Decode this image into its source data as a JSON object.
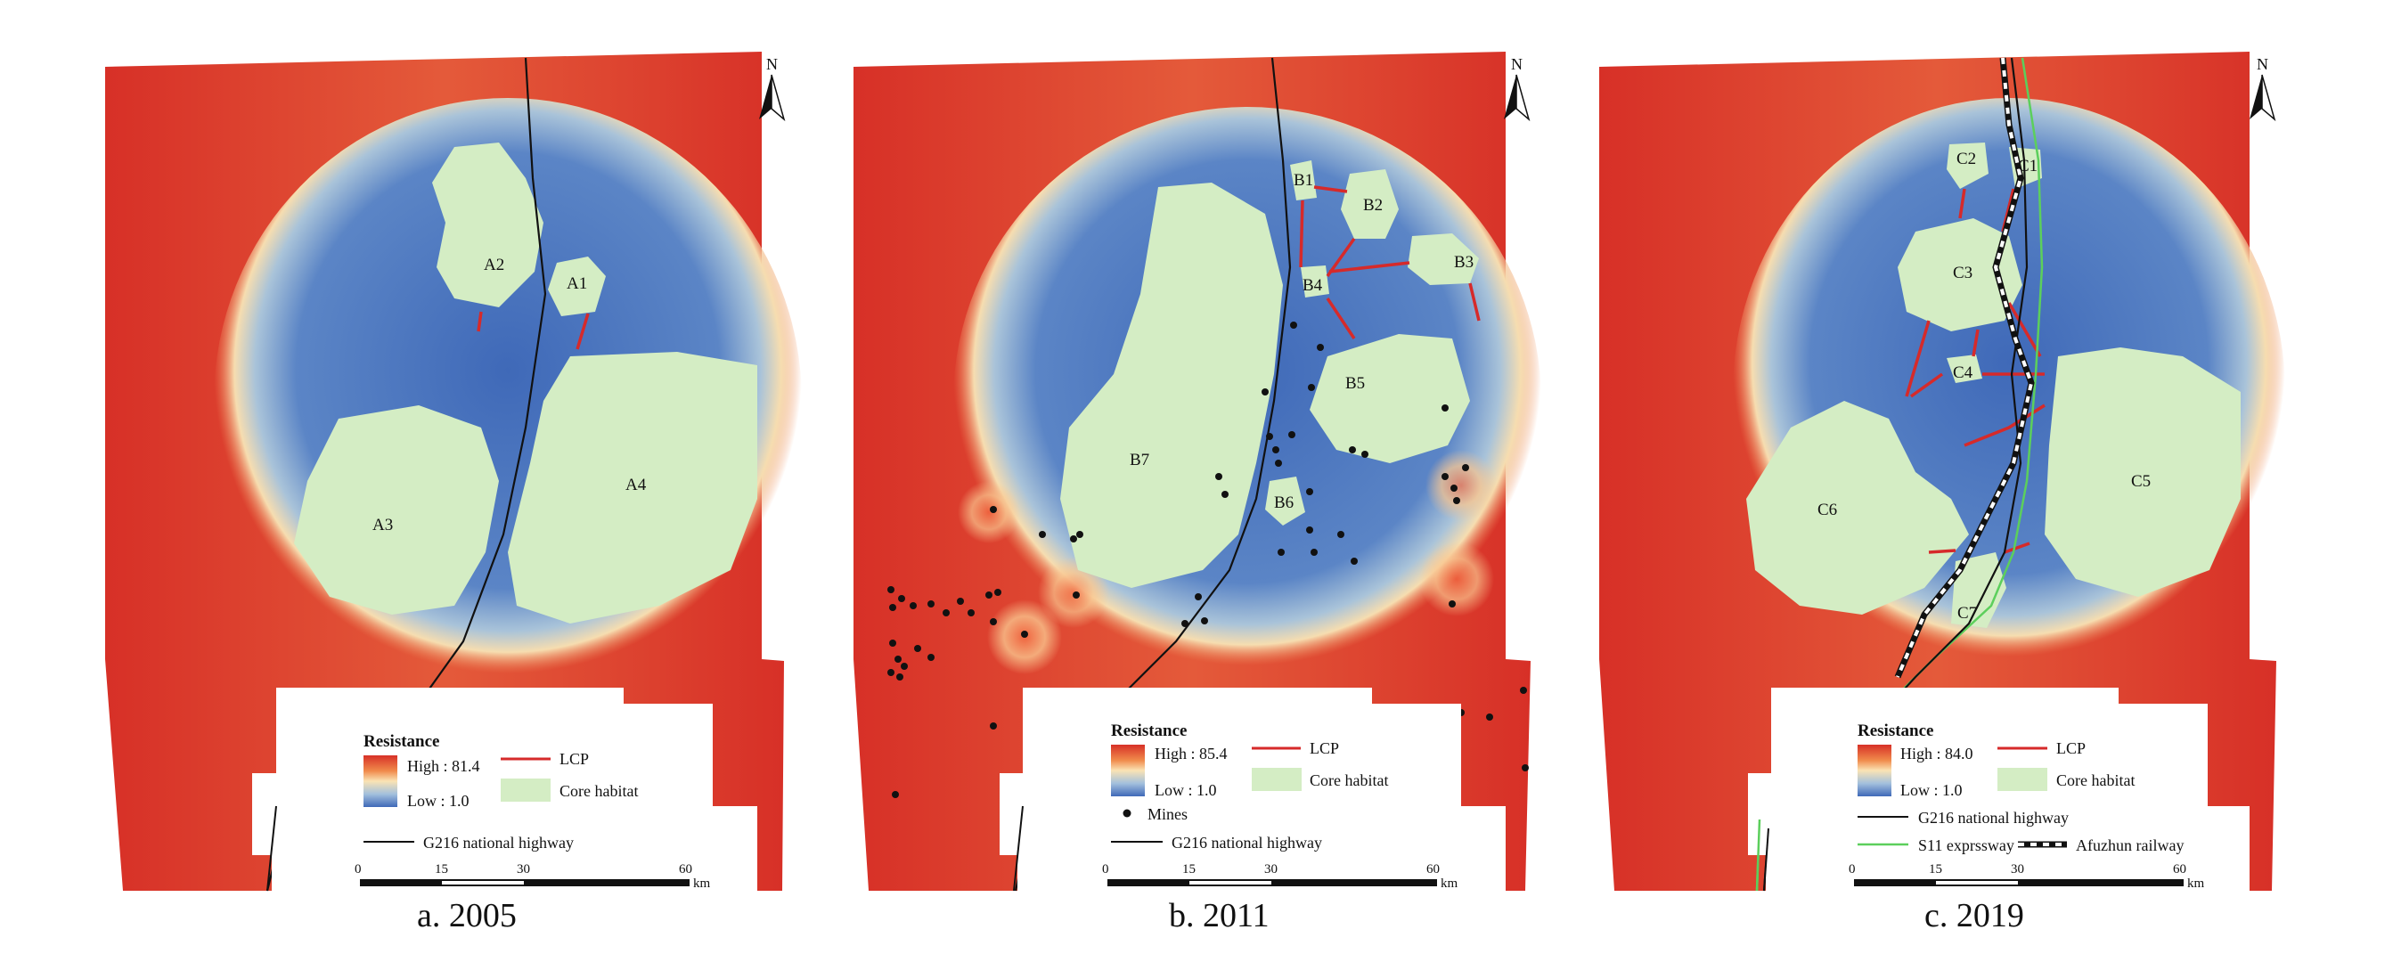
{
  "panels": [
    {
      "id": "a",
      "caption": "a. 2005",
      "north_label": "N",
      "legend": {
        "title": "Resistance",
        "high": "High : 81.4",
        "low": "Low : 1.0",
        "lcp": "LCP",
        "core": "Core habitat",
        "highway": "G216 national highway",
        "mines": "",
        "expressway": "",
        "railway": ""
      },
      "scale": {
        "ticks": [
          "0",
          "15",
          "30",
          "60"
        ],
        "unit": "km"
      },
      "habitats": [
        "A1",
        "A2",
        "A3",
        "A4"
      ]
    },
    {
      "id": "b",
      "caption": "b. 2011",
      "north_label": "N",
      "legend": {
        "title": "Resistance",
        "high": "High : 85.4",
        "low": "Low : 1.0",
        "lcp": "LCP",
        "core": "Core habitat",
        "highway": "G216 national highway",
        "mines": "Mines",
        "expressway": "",
        "railway": ""
      },
      "scale": {
        "ticks": [
          "0",
          "15",
          "30",
          "60"
        ],
        "unit": "km"
      },
      "habitats": [
        "B1",
        "B2",
        "B3",
        "B4",
        "B5",
        "B6",
        "B7"
      ]
    },
    {
      "id": "c",
      "caption": "c. 2019",
      "north_label": "N",
      "legend": {
        "title": "Resistance",
        "high": "High : 84.0",
        "low": "Low : 1.0",
        "lcp": "LCP",
        "core": "Core habitat",
        "highway": "G216 national highway",
        "mines": "",
        "expressway": "S11 exprssway",
        "railway": "Afuzhun railway"
      },
      "scale": {
        "ticks": [
          "0",
          "15",
          "30",
          "60"
        ],
        "unit": "km"
      },
      "habitats": [
        "C1",
        "C2",
        "C3",
        "C4",
        "C5",
        "C6",
        "C7"
      ]
    }
  ],
  "colors": {
    "high": "#d73027",
    "mid": "#f4d9a6",
    "low": "#4a74bd",
    "core": "#d4edc4",
    "lcp": "#d62a2a",
    "highway": "#111111",
    "expressway": "#5ccf5c",
    "railway": "#111111"
  }
}
